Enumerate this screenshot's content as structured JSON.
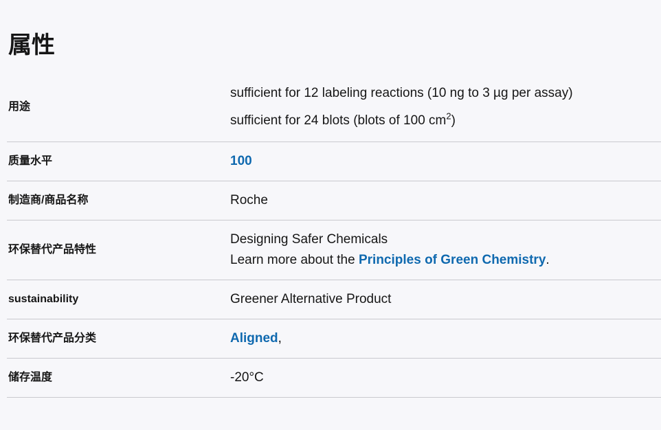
{
  "page": {
    "title": "属性",
    "colors": {
      "background": "#f7f7fa",
      "text": "#161616",
      "link": "#0f69af",
      "border": "#c9c9ce"
    }
  },
  "table": {
    "rows": [
      {
        "label": "用途",
        "value_line1": "sufficient for 12 labeling reactions (10 ng to 3 µg per assay)",
        "value_line2_pre": "sufficient for 24 blots (blots of 100 cm",
        "value_line2_sup": "2",
        "value_line2_post": ")"
      },
      {
        "label": "质量水平",
        "link_value": "100"
      },
      {
        "label": "制造商/商品名称",
        "value": "Roche"
      },
      {
        "label": "环保替代产品特性",
        "value_line1": "Designing Safer Chemicals",
        "value_line2_pre": "Learn more about the ",
        "value_line2_link": "Principles of Green Chemistry",
        "value_line2_post": "."
      },
      {
        "label": "sustainability",
        "value": "Greener Alternative Product"
      },
      {
        "label": "环保替代产品分类",
        "link_value": "Aligned",
        "link_suffix": ","
      },
      {
        "label": "储存温度",
        "value": "-20°C"
      }
    ]
  }
}
